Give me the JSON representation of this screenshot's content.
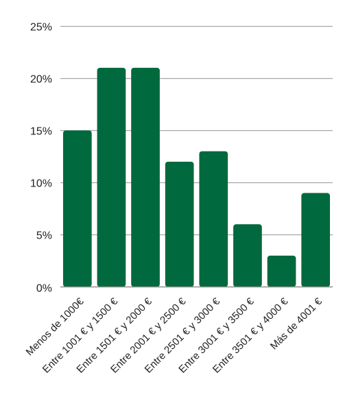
{
  "chart_data": {
    "type": "bar",
    "categories": [
      "Menos de 1000€",
      "Entre 1001 € y 1500 €",
      "Entre 1501 € y 2000 €",
      "Entre 2001 € y 2500 €",
      "Entre 2501 € y 3000 €",
      "Entre 3001 € y 3500 €",
      "Entre 3501 € y 4000 €",
      "Más de 4001 €"
    ],
    "values": [
      15,
      21,
      21,
      12,
      13,
      6,
      3,
      9
    ],
    "y_ticks": [
      "0%",
      "5%",
      "10%",
      "15%",
      "20%",
      "25%"
    ],
    "y_tick_values": [
      0,
      5,
      10,
      15,
      20,
      25
    ],
    "ylim": [
      0,
      25
    ],
    "grid": true,
    "legend": "none",
    "title": "",
    "xlabel": "",
    "ylabel": "",
    "colors": {
      "bar": "#00693e",
      "grid": "#a6a6a6",
      "axis": "#8c8c8c"
    }
  }
}
